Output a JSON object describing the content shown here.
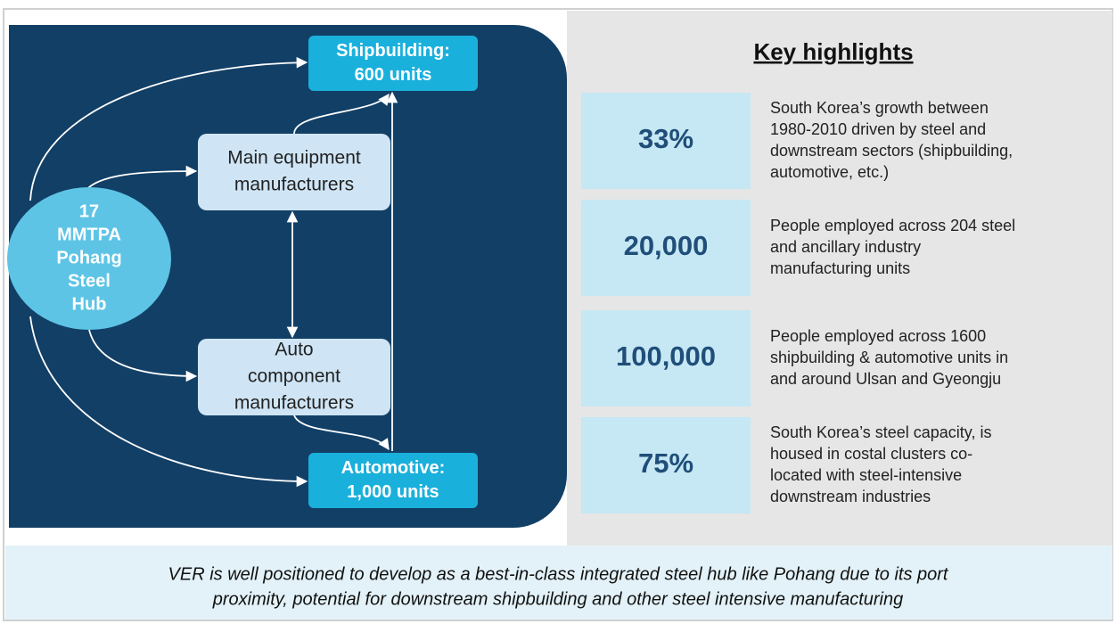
{
  "diagram": {
    "hub": [
      "17",
      "MMTPA",
      "Pohang",
      "Steel",
      "Hub"
    ],
    "shipbuilding": [
      "Shipbuilding:",
      "600 units"
    ],
    "main_equipment": [
      "Main equipment",
      "manufacturers"
    ],
    "auto_component": [
      "Auto",
      "component",
      "manufacturers"
    ],
    "automotive": [
      "Automotive:",
      "1,000 units"
    ]
  },
  "highlights": {
    "title": "Key highlights",
    "items": [
      {
        "value": "33%",
        "text": [
          "South Korea’s growth between",
          "1980-2010 driven by steel and",
          "downstream sectors (shipbuilding,",
          "automotive, etc.)"
        ]
      },
      {
        "value": "20,000",
        "text": [
          "People employed across 204 steel",
          "and ancillary industry",
          "manufacturing units"
        ]
      },
      {
        "value": "100,000",
        "text": [
          "People employed across 1600",
          "shipbuilding & automotive units in",
          "and around Ulsan and Gyeongju"
        ]
      },
      {
        "value": "75%",
        "text": [
          "South Korea’s steel capacity, is",
          "housed in costal clusters co-",
          "located with steel-intensive",
          "downstream industries"
        ]
      }
    ]
  },
  "footer": [
    "VER is well positioned to develop as a best-in-class integrated steel hub like Pohang due to its port",
    "proximity, potential for downstream shipbuilding and other steel intensive manufacturing"
  ]
}
